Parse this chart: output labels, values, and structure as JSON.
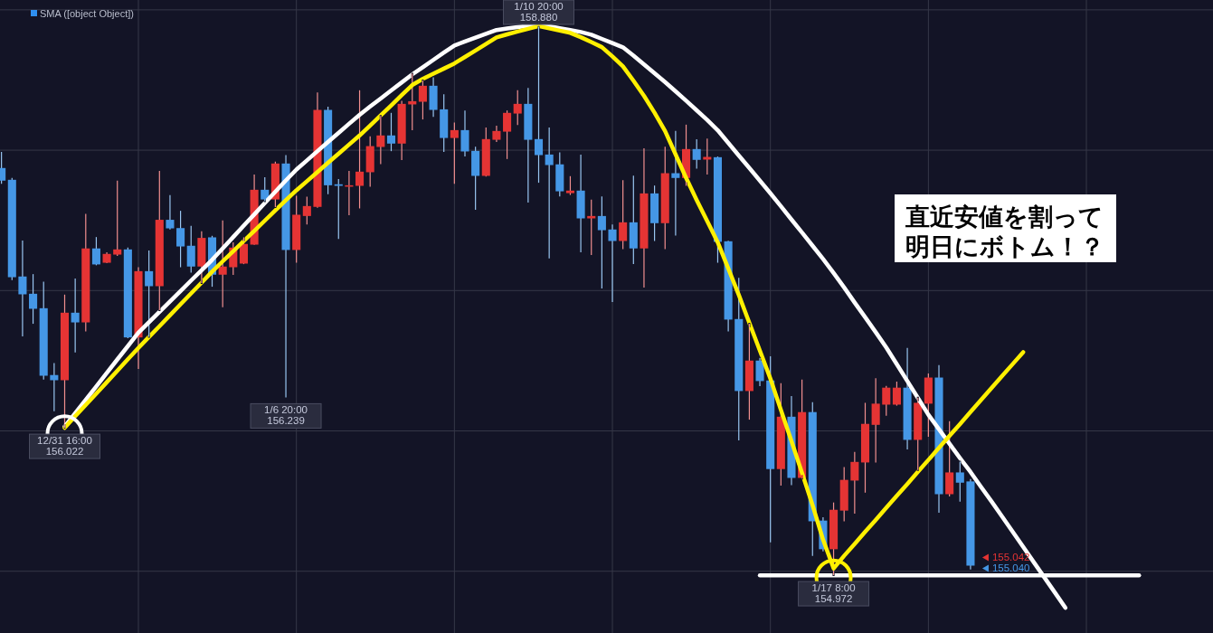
{
  "chart_data": {
    "type": "candlestick",
    "categories": [
      null,
      null,
      null,
      null,
      null,
      null,
      null,
      null,
      null,
      null,
      null,
      null,
      null,
      null,
      null,
      null,
      null,
      null,
      null,
      null,
      null,
      null,
      null,
      null,
      null,
      null,
      null,
      null,
      null,
      null,
      null,
      null,
      null,
      null,
      null,
      null,
      null,
      null,
      null,
      null,
      null,
      null,
      null,
      null,
      null,
      null,
      null,
      null,
      null,
      null,
      null,
      null,
      null,
      null,
      null,
      null,
      null,
      null,
      null,
      null,
      null,
      null,
      null,
      null,
      null,
      null,
      null,
      null,
      null,
      null,
      null,
      null,
      null,
      null,
      null,
      null,
      null,
      null,
      null,
      null,
      null,
      null,
      null,
      null,
      null,
      null,
      null,
      null,
      null,
      null,
      null,
      null,
      null,
      null,
      null,
      null,
      null,
      null,
      null,
      null,
      null,
      null,
      null,
      null,
      null,
      null,
      null,
      null,
      null,
      null,
      null,
      null,
      null,
      null,
      null,
      null
    ],
    "ohlc": [
      [
        157.873,
        157.987,
        157.761,
        157.783
      ],
      [
        157.789,
        157.802,
        157.074,
        157.095
      ],
      [
        157.1,
        157.356,
        156.673,
        156.973
      ],
      [
        156.977,
        157.117,
        156.763,
        156.87
      ],
      [
        156.874,
        157.063,
        156.366,
        156.393
      ],
      [
        156.398,
        156.483,
        156.14,
        156.361
      ],
      [
        156.361,
        156.971,
        156.022,
        156.842
      ],
      [
        156.842,
        157.085,
        156.559,
        156.773
      ],
      [
        156.773,
        157.546,
        156.709,
        157.3
      ],
      [
        157.3,
        157.381,
        157.18,
        157.186
      ],
      [
        157.198,
        157.272,
        157.195,
        157.261
      ],
      [
        157.256,
        157.783,
        157.246,
        157.293
      ],
      [
        157.293,
        157.306,
        156.66,
        156.666
      ],
      [
        156.666,
        157.166,
        156.441,
        157.138
      ],
      [
        157.138,
        157.285,
        156.67,
        157.031
      ],
      [
        157.031,
        157.852,
        156.86,
        157.504
      ],
      [
        157.504,
        157.68,
        157.435,
        157.443
      ],
      [
        157.445,
        157.568,
        157.166,
        157.314
      ],
      [
        157.319,
        157.461,
        157.128,
        157.171
      ],
      [
        157.171,
        157.422,
        157.053,
        157.375
      ],
      [
        157.379,
        157.39,
        157.027,
        157.113
      ],
      [
        157.113,
        157.499,
        156.881,
        157.171
      ],
      [
        157.166,
        157.343,
        157.111,
        157.306
      ],
      [
        157.192,
        157.379,
        157.188,
        157.332
      ],
      [
        157.327,
        157.826,
        157.325,
        157.718
      ],
      [
        157.718,
        157.808,
        157.636,
        157.649
      ],
      [
        157.649,
        157.918,
        157.594,
        157.905
      ],
      [
        157.905,
        157.965,
        156.239,
        157.289
      ],
      [
        157.289,
        157.675,
        157.198,
        157.54
      ],
      [
        157.531,
        157.669,
        157.471,
        157.602
      ],
      [
        157.596,
        158.412,
        157.59,
        158.287
      ],
      [
        158.287,
        158.309,
        157.686,
        157.75
      ],
      [
        157.757,
        157.794,
        157.368,
        157.746
      ],
      [
        157.746,
        157.853,
        157.536,
        157.75
      ],
      [
        157.746,
        158.427,
        157.585,
        157.847
      ],
      [
        157.843,
        158.098,
        157.739,
        158.029
      ],
      [
        158.023,
        158.244,
        157.9,
        158.105
      ],
      [
        158.105,
        158.266,
        157.993,
        158.047
      ],
      [
        158.047,
        158.351,
        157.929,
        158.33
      ],
      [
        158.326,
        158.545,
        158.142,
        158.349
      ],
      [
        158.345,
        158.496,
        158.219,
        158.459
      ],
      [
        158.459,
        158.519,
        158.238,
        158.287
      ],
      [
        158.291,
        158.399,
        157.987,
        158.087
      ],
      [
        158.087,
        158.197,
        157.761,
        158.143
      ],
      [
        158.143,
        158.283,
        157.955,
        157.991
      ],
      [
        157.995,
        158.025,
        157.575,
        157.817
      ],
      [
        157.817,
        158.161,
        157.812,
        158.079
      ],
      [
        158.074,
        158.174,
        158.058,
        158.137
      ],
      [
        158.132,
        158.283,
        157.937,
        158.266
      ],
      [
        158.261,
        158.427,
        158.18,
        158.33
      ],
      [
        158.33,
        158.444,
        157.626,
        158.074
      ],
      [
        158.079,
        158.88,
        157.768,
        157.965
      ],
      [
        157.969,
        158.161,
        157.229,
        157.894
      ],
      [
        157.899,
        157.984,
        157.671,
        157.707
      ],
      [
        157.694,
        157.815,
        157.681,
        157.712
      ],
      [
        157.712,
        157.969,
        157.272,
        157.514
      ],
      [
        157.514,
        157.647,
        157.253,
        157.531
      ],
      [
        157.531,
        157.671,
        157.014,
        157.43
      ],
      [
        157.435,
        157.471,
        156.918,
        157.353
      ],
      [
        157.353,
        157.787,
        157.295,
        157.486
      ],
      [
        157.486,
        157.819,
        157.188,
        157.3
      ],
      [
        157.3,
        158.014,
        157.021,
        157.692
      ],
      [
        157.692,
        157.748,
        157.353,
        157.48
      ],
      [
        157.48,
        158.025,
        157.295,
        157.836
      ],
      [
        157.836,
        158.137,
        157.392,
        157.802
      ],
      [
        157.802,
        158.182,
        157.746,
        158.008
      ],
      [
        158.008,
        158.077,
        157.868,
        157.931
      ],
      [
        157.933,
        158.083,
        157.826,
        157.952
      ],
      [
        157.95,
        157.955,
        157.198,
        157.347
      ],
      [
        157.351,
        157.355,
        156.709,
        156.793
      ],
      [
        156.797,
        157.091,
        155.932,
        156.284
      ],
      [
        156.284,
        156.763,
        156.08,
        156.501
      ],
      [
        156.501,
        156.52,
        156.319,
        156.355
      ],
      [
        156.359,
        156.531,
        155.206,
        155.728
      ],
      [
        155.728,
        156.34,
        155.61,
        156.101
      ],
      [
        156.101,
        156.248,
        155.614,
        155.665
      ],
      [
        155.665,
        156.366,
        155.66,
        156.134
      ],
      [
        156.134,
        156.204,
        155.11,
        155.356
      ],
      [
        155.361,
        155.385,
        155.142,
        155.157
      ],
      [
        155.157,
        155.49,
        154.972,
        155.438
      ],
      [
        155.432,
        155.743,
        155.356,
        155.651
      ],
      [
        155.646,
        155.85,
        155.41,
        155.779
      ],
      [
        155.775,
        156.2,
        155.56,
        156.05
      ],
      [
        156.043,
        156.376,
        155.775,
        156.194
      ],
      [
        156.187,
        156.32,
        156.108,
        156.308
      ],
      [
        156.187,
        156.351,
        156.18,
        156.308
      ],
      [
        156.308,
        156.591,
        155.868,
        155.936
      ],
      [
        155.936,
        156.237,
        155.721,
        156.2
      ],
      [
        156.194,
        156.409,
        155.958,
        156.38
      ],
      [
        156.38,
        156.469,
        155.417,
        155.549
      ],
      [
        155.549,
        156.069,
        155.533,
        155.704
      ],
      [
        155.704,
        155.781,
        155.496,
        155.631
      ],
      [
        155.64,
        155.657,
        155.013,
        155.04
      ],
      null,
      null,
      null,
      null,
      null,
      null,
      null,
      null,
      null,
      null,
      null,
      null,
      null,
      null,
      null,
      null,
      null,
      null,
      null,
      null,
      null,
      null,
      null
    ],
    "colors": [
      "#4597e6",
      "#4597e6",
      "#4597e6",
      "#4597e6",
      "#4597e6",
      "#4597e6",
      "#e53434",
      "#4597e6",
      "#e53434",
      "#4597e6",
      "#e53434",
      "#e53434",
      "#4597e6",
      "#e53434",
      "#4597e6",
      "#e53434",
      "#4597e6",
      "#4597e6",
      "#4597e6",
      "#e53434",
      "#4597e6",
      "#e53434",
      "#e53434",
      "#e53434",
      "#e53434",
      "#4597e6",
      "#e53434",
      "#4597e6",
      "#e53434",
      "#e53434",
      "#e53434",
      "#4597e6",
      "#4597e6",
      "#e53434",
      "#e53434",
      "#e53434",
      "#e53434",
      "#4597e6",
      "#e53434",
      "#e53434",
      "#e53434",
      "#4597e6",
      "#4597e6",
      "#e53434",
      "#4597e6",
      "#4597e6",
      "#e53434",
      "#e53434",
      "#e53434",
      "#e53434",
      "#4597e6",
      "#4597e6",
      "#4597e6",
      "#4597e6",
      "#e53434",
      "#4597e6",
      "#e53434",
      "#4597e6",
      "#4597e6",
      "#e53434",
      "#4597e6",
      "#e53434",
      "#4597e6",
      "#e53434",
      "#4597e6",
      "#e53434",
      "#4597e6",
      "#e53434",
      "#4597e6",
      "#4597e6",
      "#4597e6",
      "#e53434",
      "#4597e6",
      "#4597e6",
      "#e53434",
      "#4597e6",
      "#e53434",
      "#4597e6",
      "#4597e6",
      "#e53434",
      "#e53434",
      "#e53434",
      "#e53434",
      "#e53434",
      "#e53434",
      "#e53434",
      "#4597e6",
      "#e53434",
      "#e53434",
      "#4597e6",
      "#e53434",
      "#4597e6",
      "#4597e6",
      null,
      null,
      null,
      null,
      null,
      null,
      null,
      null,
      null,
      null,
      null,
      null,
      null,
      null,
      null,
      null,
      null,
      null,
      null,
      null,
      null,
      null,
      null
    ],
    "series": [
      {
        "name": "SMA ([object Object])",
        "type": "line",
        "color": "#2f8ff0",
        "values": [
          null,
          null,
          null,
          null,
          null,
          null,
          null,
          null,
          null,
          null,
          null,
          null,
          null,
          null,
          null,
          null,
          null,
          null,
          null,
          null,
          null,
          null,
          null,
          null,
          null,
          null,
          null,
          null,
          null,
          null,
          null,
          null,
          null,
          null,
          null,
          null,
          null,
          null,
          null,
          null,
          null,
          null,
          null,
          null,
          null,
          null,
          null,
          null,
          null,
          null,
          null,
          null,
          null,
          null,
          null,
          null,
          null,
          null,
          null,
          null,
          null,
          null,
          null,
          null,
          null,
          null,
          null,
          null,
          null,
          null,
          null,
          null,
          null,
          null,
          null,
          null,
          null,
          null,
          null,
          null,
          null,
          null,
          null,
          null,
          null,
          null,
          null,
          null,
          null,
          null,
          null,
          null,
          null,
          null,
          null,
          null,
          null,
          null,
          null,
          null,
          null,
          null,
          null,
          null,
          null,
          null,
          null,
          null,
          null,
          null,
          null,
          null,
          null,
          null,
          null,
          null
        ]
      },
      {
        "type": "line",
        "color": "#ffffff",
        "values": [
          null,
          null,
          null,
          null,
          null,
          null,
          156.031,
          156.126,
          156.222,
          156.317,
          156.413,
          156.509,
          156.604,
          156.7,
          156.774,
          156.848,
          156.922,
          156.996,
          157.071,
          157.145,
          157.219,
          157.3,
          157.381,
          157.462,
          157.542,
          157.623,
          157.704,
          157.785,
          157.862,
          157.927,
          157.993,
          158.058,
          158.123,
          158.188,
          158.252,
          158.311,
          158.368,
          158.426,
          158.483,
          158.54,
          158.591,
          158.643,
          158.695,
          158.746,
          158.775,
          158.802,
          158.829,
          158.856,
          158.867,
          158.877,
          158.887,
          158.897,
          158.883,
          158.869,
          158.856,
          158.842,
          158.823,
          158.793,
          158.763,
          158.733,
          158.674,
          158.611,
          158.548,
          158.485,
          158.419,
          158.352,
          158.284,
          158.216,
          158.142,
          158.052,
          157.962,
          157.873,
          157.783,
          157.693,
          157.6,
          157.506,
          157.413,
          157.319,
          157.225,
          157.125,
          157.022,
          156.914,
          156.809,
          156.703,
          156.594,
          156.475,
          156.355,
          156.235,
          156.115,
          156.012,
          155.909,
          155.806,
          155.707,
          155.6,
          155.497,
          155.39,
          155.282,
          155.174,
          155.065,
          154.957,
          154.849,
          154.74,
          null,
          null,
          null,
          null,
          null,
          null,
          null,
          null,
          null,
          null,
          null,
          null,
          null,
          null
        ]
      },
      {
        "type": "line",
        "color": "#fff000",
        "values": [
          null,
          null,
          null,
          null,
          null,
          null,
          156.022,
          156.104,
          156.185,
          156.266,
          156.347,
          156.429,
          156.51,
          156.591,
          156.669,
          156.746,
          156.824,
          156.902,
          156.979,
          157.057,
          157.135,
          157.208,
          157.28,
          157.353,
          157.425,
          157.498,
          157.571,
          157.643,
          157.714,
          157.779,
          157.844,
          157.91,
          157.975,
          158.04,
          158.105,
          158.175,
          158.247,
          158.319,
          158.392,
          158.464,
          158.508,
          158.545,
          158.581,
          158.618,
          158.664,
          158.71,
          158.757,
          158.803,
          158.825,
          158.845,
          158.865,
          158.884,
          158.868,
          158.852,
          158.836,
          158.805,
          158.77,
          158.734,
          158.668,
          158.597,
          158.495,
          158.387,
          158.267,
          158.137,
          157.97,
          157.802,
          157.645,
          157.495,
          157.344,
          157.157,
          156.969,
          156.77,
          156.572,
          156.372,
          156.149,
          155.927,
          155.701,
          155.472,
          155.225,
          155.02,
          155.11,
          155.195,
          155.281,
          155.366,
          155.452,
          155.537,
          155.622,
          155.708,
          155.793,
          155.879,
          155.964,
          156.049,
          156.135,
          156.22,
          156.306,
          156.391,
          156.476,
          156.561,
          null,
          null,
          null,
          null,
          null,
          null,
          null,
          null,
          null,
          null,
          null,
          null,
          null,
          null,
          null,
          null,
          null,
          null
        ]
      },
      {
        "type": "line",
        "color": "#ffffff",
        "values": [
          null,
          null,
          null,
          null,
          null,
          null,
          null,
          null,
          null,
          null,
          null,
          null,
          null,
          null,
          null,
          null,
          null,
          null,
          null,
          null,
          null,
          null,
          null,
          null,
          null,
          null,
          null,
          null,
          null,
          null,
          null,
          null,
          null,
          null,
          null,
          null,
          null,
          null,
          null,
          null,
          null,
          null,
          null,
          null,
          null,
          null,
          null,
          null,
          null,
          null,
          null,
          null,
          null,
          null,
          null,
          null,
          null,
          null,
          null,
          null,
          null,
          null,
          null,
          null,
          null,
          null,
          null,
          null,
          null,
          null,
          null,
          null,
          154.97,
          154.97,
          154.97,
          154.97,
          154.97,
          154.97,
          154.97,
          154.97,
          154.97,
          154.97,
          154.97,
          154.97,
          154.97,
          154.97,
          154.97,
          154.97,
          154.97,
          154.97,
          154.97,
          154.97,
          154.97,
          154.97,
          154.97,
          154.97,
          154.97,
          154.97,
          154.97,
          154.97,
          154.97,
          154.97,
          154.97,
          154.97,
          154.97,
          154.97,
          154.97,
          154.97,
          154.97,
          null,
          null,
          null,
          null,
          null,
          null,
          null
        ]
      },
      {
        "type": "scatter",
        "color": "#ffffff",
        "marker": "circle",
        "values": [
          null,
          null,
          null,
          null,
          null,
          null,
          155.982,
          null,
          null,
          null,
          null,
          null,
          null,
          null,
          null,
          null,
          null,
          null,
          null,
          null,
          null,
          null,
          null,
          null,
          null,
          null,
          null,
          null,
          null,
          null,
          null,
          null,
          null,
          null,
          null,
          null,
          null,
          null,
          null,
          null,
          null,
          null,
          null,
          null,
          null,
          null,
          null,
          null,
          null,
          null,
          null,
          null,
          null,
          null,
          null,
          null,
          null,
          null,
          null,
          null,
          null,
          null,
          null,
          null,
          null,
          null,
          null,
          null,
          null,
          null,
          null,
          null,
          null,
          null,
          null,
          null,
          null,
          null,
          null,
          null,
          null,
          null,
          null,
          null,
          null,
          null,
          null,
          null,
          null,
          null,
          null,
          null,
          null,
          null,
          null,
          null,
          null,
          null,
          null,
          null,
          null,
          null,
          null,
          null,
          null,
          null,
          null,
          null,
          null,
          null,
          null,
          null,
          null,
          null,
          null,
          null
        ]
      },
      {
        "type": "scatter",
        "color": "#fff000",
        "marker": "circle",
        "values": [
          null,
          null,
          null,
          null,
          null,
          null,
          null,
          null,
          null,
          null,
          null,
          null,
          null,
          null,
          null,
          null,
          null,
          null,
          null,
          null,
          null,
          null,
          null,
          null,
          null,
          null,
          null,
          null,
          null,
          null,
          null,
          null,
          null,
          null,
          null,
          null,
          null,
          null,
          null,
          null,
          null,
          null,
          null,
          null,
          null,
          null,
          null,
          null,
          null,
          null,
          null,
          null,
          null,
          null,
          null,
          null,
          null,
          null,
          null,
          null,
          null,
          null,
          null,
          null,
          null,
          null,
          null,
          null,
          null,
          null,
          null,
          null,
          null,
          null,
          null,
          null,
          null,
          null,
          null,
          154.955,
          null,
          null,
          null,
          null,
          null,
          null,
          null,
          null,
          null,
          null,
          null,
          null,
          null,
          null,
          null,
          null,
          null,
          null,
          null,
          null,
          null,
          null,
          null,
          null,
          null,
          null,
          null,
          null,
          null,
          null,
          null,
          null,
          null,
          null,
          null,
          null
        ]
      }
    ],
    "ylim": [
      154.56,
      159.07
    ],
    "yticks": [
      155,
      156,
      157,
      158,
      159
    ],
    "grid": true,
    "tick_labels": false,
    "legend": "top left",
    "annotations": [
      {
        "text": "12/31 16:00\n156.022",
        "y": 156.022
      },
      {
        "text": "1/6 20:00\n156.239",
        "y": 156.239
      },
      {
        "text": "1/10 20:00\n158.880",
        "y": 158.88
      },
      {
        "text": "1/17 8:00\n154.972",
        "y": 154.972
      },
      "155.042",
      "155.040",
      "直近安値を割って明日にボトム！？"
    ]
  }
}
